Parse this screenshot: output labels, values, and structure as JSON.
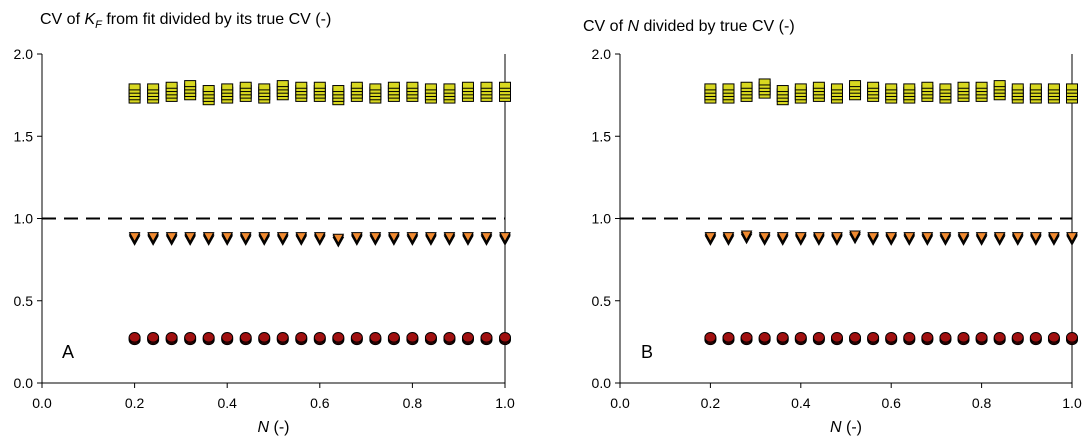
{
  "chart_data": [
    {
      "type": "scatter",
      "title": "CV of {K_F} from fit divided by its true CV (-)",
      "title_parts": [
        {
          "text": "CV of ",
          "style": "normal"
        },
        {
          "text": "K",
          "style": "italic"
        },
        {
          "text": "F",
          "style": "italic-sub"
        },
        {
          "text": " from fit divided by its true CV (-)",
          "style": "normal"
        }
      ],
      "xlabel_parts": [
        {
          "text": "N",
          "style": "italic"
        },
        {
          "text": " (-)",
          "style": "normal"
        }
      ],
      "panel_label": "A",
      "xlim": [
        0.0,
        1.0
      ],
      "ylim": [
        0.0,
        2.0
      ],
      "xticks": [
        "0.0",
        "0.2",
        "0.4",
        "0.6",
        "0.8",
        "1.0"
      ],
      "yticks": [
        "0.0",
        "0.5",
        "1.0",
        "1.5",
        "2.0"
      ],
      "x": [
        0.2,
        0.24,
        0.28,
        0.32,
        0.36,
        0.4,
        0.44,
        0.48,
        0.52,
        0.56,
        0.6,
        0.64,
        0.68,
        0.72,
        0.76,
        0.8,
        0.84,
        0.88,
        0.92,
        0.96,
        1.0
      ],
      "reference_line": {
        "y": 1.0,
        "style": "dashed"
      },
      "series": [
        {
          "marker": "square",
          "color": "#d8d820",
          "values": [
            1.76,
            1.76,
            1.77,
            1.78,
            1.75,
            1.76,
            1.77,
            1.76,
            1.78,
            1.77,
            1.77,
            1.75,
            1.77,
            1.76,
            1.77,
            1.77,
            1.76,
            1.76,
            1.77,
            1.77,
            1.77
          ],
          "spread": 0.04
        },
        {
          "marker": "triangle-down",
          "color": "#f08a30",
          "values": [
            0.88,
            0.88,
            0.88,
            0.88,
            0.88,
            0.88,
            0.88,
            0.88,
            0.88,
            0.88,
            0.88,
            0.87,
            0.88,
            0.88,
            0.88,
            0.88,
            0.88,
            0.88,
            0.88,
            0.88,
            0.88
          ],
          "spread": 0.02
        },
        {
          "marker": "circle",
          "color": "#a01010",
          "values": [
            0.27,
            0.27,
            0.27,
            0.27,
            0.27,
            0.27,
            0.27,
            0.27,
            0.27,
            0.27,
            0.27,
            0.27,
            0.27,
            0.27,
            0.27,
            0.27,
            0.27,
            0.27,
            0.27,
            0.27,
            0.27
          ],
          "spread": 0.015
        }
      ]
    },
    {
      "type": "scatter",
      "title": "CV of N divided by true CV (-)",
      "title_parts": [
        {
          "text": "CV of ",
          "style": "normal"
        },
        {
          "text": "N",
          "style": "italic"
        },
        {
          "text": " divided by true CV (-)",
          "style": "normal"
        }
      ],
      "xlabel_parts": [
        {
          "text": "N",
          "style": "italic"
        },
        {
          "text": " (-)",
          "style": "normal"
        }
      ],
      "panel_label": "B",
      "xlim": [
        0.0,
        1.0
      ],
      "ylim": [
        0.0,
        2.0
      ],
      "xticks": [
        "0.0",
        "0.2",
        "0.4",
        "0.6",
        "0.8",
        "1.0"
      ],
      "yticks": [
        "0.0",
        "0.5",
        "1.0",
        "1.5",
        "2.0"
      ],
      "x": [
        0.2,
        0.24,
        0.28,
        0.32,
        0.36,
        0.4,
        0.44,
        0.48,
        0.52,
        0.56,
        0.6,
        0.64,
        0.68,
        0.72,
        0.76,
        0.8,
        0.84,
        0.88,
        0.92,
        0.96,
        1.0
      ],
      "reference_line": {
        "y": 1.0,
        "style": "dashed"
      },
      "series": [
        {
          "marker": "square",
          "color": "#d8d820",
          "values": [
            1.76,
            1.76,
            1.77,
            1.79,
            1.75,
            1.76,
            1.77,
            1.76,
            1.78,
            1.77,
            1.76,
            1.76,
            1.77,
            1.76,
            1.77,
            1.77,
            1.78,
            1.76,
            1.76,
            1.76,
            1.76
          ],
          "spread": 0.04
        },
        {
          "marker": "triangle-down",
          "color": "#f08a30",
          "values": [
            0.88,
            0.88,
            0.89,
            0.88,
            0.88,
            0.88,
            0.88,
            0.88,
            0.89,
            0.88,
            0.88,
            0.88,
            0.88,
            0.88,
            0.88,
            0.88,
            0.88,
            0.88,
            0.88,
            0.88,
            0.88
          ],
          "spread": 0.02
        },
        {
          "marker": "circle",
          "color": "#a01010",
          "values": [
            0.27,
            0.27,
            0.27,
            0.27,
            0.27,
            0.27,
            0.27,
            0.27,
            0.27,
            0.27,
            0.27,
            0.27,
            0.27,
            0.27,
            0.27,
            0.27,
            0.27,
            0.27,
            0.27,
            0.27,
            0.27
          ],
          "spread": 0.015
        }
      ]
    }
  ]
}
